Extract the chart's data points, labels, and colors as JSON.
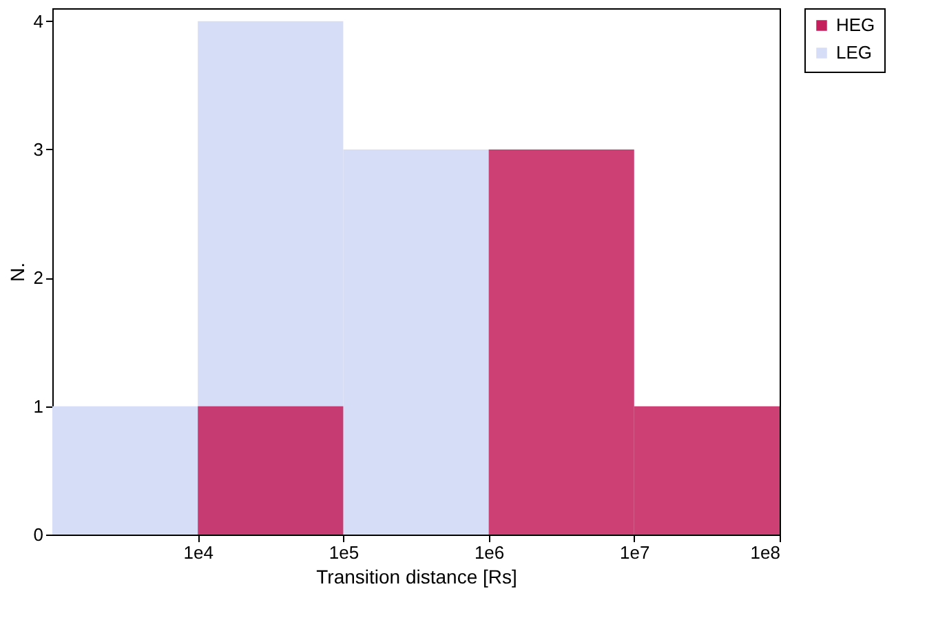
{
  "chart_data": {
    "type": "histogram",
    "xlabel": "Transition distance [Rs]",
    "ylabel": "N.",
    "bins": [
      1000,
      10000,
      100000,
      1000000,
      10000000,
      100000000
    ],
    "series": [
      {
        "name": "HEG",
        "color": "#c41e5c",
        "values": [
          0,
          1,
          0,
          3,
          1
        ]
      },
      {
        "name": "LEG",
        "color": "#d6ddf7",
        "values": [
          1,
          4,
          3,
          0,
          0
        ]
      }
    ],
    "log": "x",
    "xlim": [
      1000,
      100000000
    ],
    "xticks": [
      {
        "value": 10000,
        "label": "1e4"
      },
      {
        "value": 100000,
        "label": "1e5"
      },
      {
        "value": 1000000,
        "label": "1e6"
      },
      {
        "value": 10000000,
        "label": "1e7"
      },
      {
        "value": 100000000,
        "label": "1e8"
      }
    ],
    "ylim": [
      0,
      4.1
    ],
    "yticks": [
      0,
      1,
      2,
      3,
      4
    ],
    "grid": false,
    "legend": "top right"
  }
}
